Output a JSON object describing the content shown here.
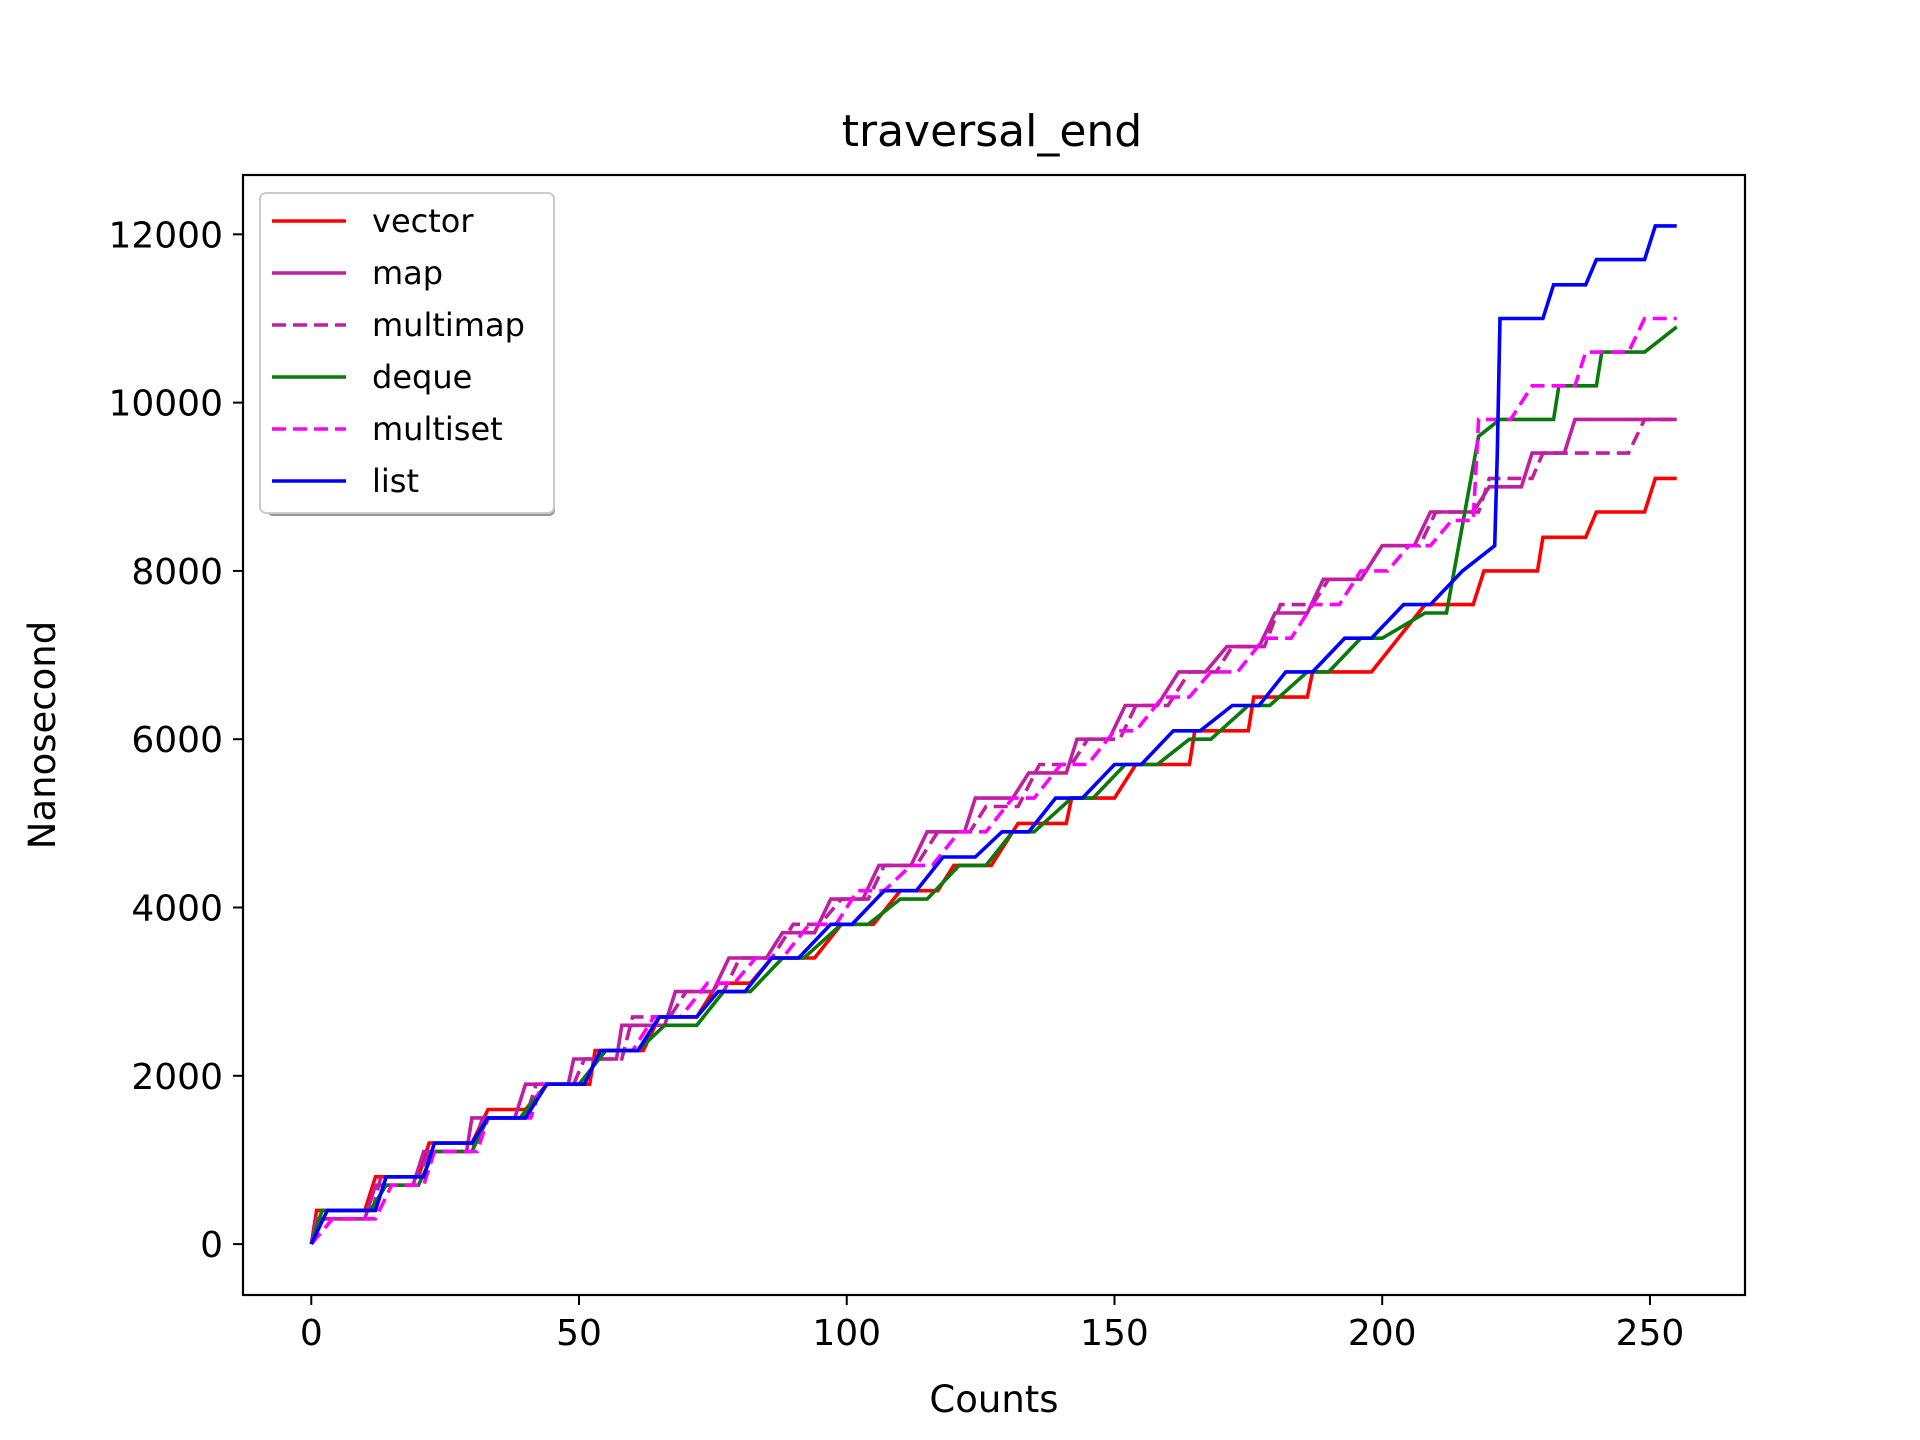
{
  "chart_data": {
    "type": "line",
    "title": "traversal_end",
    "xlabel": "Counts",
    "ylabel": "Nanosecond",
    "xlim": [
      -12.75,
      267.75
    ],
    "ylim": [
      -605,
      12705
    ],
    "xticks": [
      0,
      50,
      100,
      150,
      200,
      250
    ],
    "yticks": [
      0,
      2000,
      4000,
      6000,
      8000,
      10000,
      12000
    ],
    "grid": false,
    "legend_position": "upper-left",
    "series": [
      {
        "name": "vector",
        "color": "#ff0000",
        "dash": "solid",
        "x": [
          0,
          1,
          10,
          12,
          20,
          22,
          30,
          33,
          40,
          44,
          52,
          53,
          62,
          65,
          72,
          76,
          82,
          86,
          94,
          99,
          105,
          110,
          117,
          120,
          127,
          132,
          141,
          142,
          150,
          154,
          164,
          165,
          175,
          176,
          186,
          187,
          198,
          208,
          217,
          219,
          229,
          230,
          238,
          240,
          249,
          251,
          255
        ],
        "y": [
          0,
          400,
          400,
          800,
          800,
          1200,
          1200,
          1600,
          1600,
          1900,
          1900,
          2300,
          2300,
          2700,
          2700,
          3100,
          3100,
          3400,
          3400,
          3800,
          3800,
          4200,
          4200,
          4500,
          4500,
          5000,
          5000,
          5300,
          5300,
          5700,
          5700,
          6100,
          6100,
          6500,
          6500,
          6800,
          6800,
          7600,
          7600,
          8000,
          8000,
          8400,
          8400,
          8700,
          8700,
          9100,
          9100
        ]
      },
      {
        "name": "map",
        "color": "#bf1fa0",
        "dash": "solid",
        "x": [
          0,
          1,
          10,
          12,
          19,
          21,
          29,
          30,
          38,
          40,
          48,
          49,
          57,
          58,
          66,
          68,
          75,
          78,
          85,
          88,
          94,
          97,
          103,
          106,
          112,
          115,
          122,
          124,
          131,
          134,
          141,
          143,
          149,
          152,
          158,
          162,
          167,
          171,
          177,
          180,
          186,
          189,
          196,
          200,
          206,
          209,
          217,
          220,
          226,
          228,
          234,
          236,
          245,
          247,
          255
        ],
        "y": [
          0,
          300,
          300,
          700,
          700,
          1100,
          1100,
          1500,
          1500,
          1900,
          1900,
          2200,
          2200,
          2600,
          2600,
          3000,
          3000,
          3400,
          3400,
          3700,
          3700,
          4100,
          4100,
          4500,
          4500,
          4900,
          4900,
          5300,
          5300,
          5600,
          5600,
          6000,
          6000,
          6400,
          6400,
          6800,
          6800,
          7100,
          7100,
          7500,
          7500,
          7900,
          7900,
          8300,
          8300,
          8700,
          8700,
          9000,
          9000,
          9400,
          9400,
          9800,
          9800,
          9800,
          9800
        ]
      },
      {
        "name": "multimap",
        "color": "#bf1fa0",
        "dash": "dashed",
        "x": [
          0,
          2,
          11,
          13,
          20,
          22,
          30,
          32,
          40,
          42,
          49,
          51,
          58,
          60,
          67,
          70,
          77,
          80,
          86,
          90,
          95,
          99,
          104,
          107,
          113,
          117,
          123,
          126,
          132,
          136,
          142,
          145,
          151,
          154,
          160,
          164,
          169,
          172,
          178,
          181,
          187,
          190,
          196,
          200,
          207,
          210,
          218,
          220,
          228,
          230,
          236,
          238,
          246,
          249,
          255
        ],
        "y": [
          0,
          300,
          300,
          800,
          800,
          1100,
          1100,
          1500,
          1500,
          1900,
          1900,
          2200,
          2200,
          2700,
          2700,
          3000,
          3000,
          3400,
          3400,
          3800,
          3800,
          4100,
          4100,
          4500,
          4500,
          4900,
          4900,
          5200,
          5200,
          5700,
          5700,
          6000,
          6000,
          6400,
          6400,
          6800,
          6800,
          7100,
          7100,
          7600,
          7600,
          7900,
          7900,
          8300,
          8300,
          8700,
          8700,
          9100,
          9100,
          9400,
          9400,
          9400,
          9400,
          9800,
          9800
        ]
      },
      {
        "name": "deque",
        "color": "#0a7a0a",
        "dash": "solid",
        "x": [
          0,
          2,
          11,
          14,
          20,
          23,
          30,
          33,
          39,
          44,
          50,
          55,
          61,
          66,
          72,
          77,
          82,
          88,
          92,
          99,
          104,
          110,
          115,
          121,
          126,
          131,
          135,
          142,
          146,
          152,
          158,
          164,
          168,
          175,
          179,
          186,
          190,
          196,
          200,
          208,
          212,
          218,
          222,
          224,
          232,
          233,
          240,
          241,
          249,
          255
        ],
        "y": [
          0,
          400,
          400,
          700,
          700,
          1100,
          1100,
          1500,
          1500,
          1900,
          1900,
          2300,
          2300,
          2600,
          2600,
          3000,
          3000,
          3400,
          3400,
          3800,
          3800,
          4100,
          4100,
          4500,
          4500,
          4900,
          4900,
          5300,
          5300,
          5700,
          5700,
          6000,
          6000,
          6400,
          6400,
          6800,
          6800,
          7200,
          7200,
          7500,
          7500,
          9600,
          9800,
          9800,
          9800,
          10200,
          10200,
          10600,
          10600,
          10900
        ]
      },
      {
        "name": "multiset",
        "color": "#ff00ff",
        "dash": "dashed",
        "x": [
          0,
          4,
          12,
          15,
          21,
          23,
          31,
          33,
          41,
          43,
          51,
          54,
          60,
          64,
          69,
          74,
          79,
          83,
          88,
          93,
          98,
          102,
          107,
          112,
          116,
          121,
          126,
          131,
          135,
          140,
          145,
          150,
          154,
          159,
          164,
          168,
          173,
          178,
          183,
          187,
          192,
          196,
          201,
          205,
          209,
          213,
          217,
          218,
          220,
          224,
          228,
          231,
          236,
          238,
          246,
          249,
          255
        ],
        "y": [
          0,
          300,
          300,
          700,
          700,
          1100,
          1100,
          1500,
          1500,
          1900,
          1900,
          2300,
          2300,
          2700,
          2700,
          3100,
          3100,
          3400,
          3400,
          3800,
          3800,
          4200,
          4200,
          4500,
          4500,
          4900,
          4900,
          5300,
          5300,
          5700,
          5700,
          6100,
          6100,
          6500,
          6500,
          6800,
          6800,
          7200,
          7200,
          7600,
          7600,
          8000,
          8000,
          8300,
          8300,
          8600,
          8600,
          9800,
          9800,
          9800,
          10200,
          10200,
          10200,
          10600,
          10600,
          11000,
          11000
        ]
      },
      {
        "name": "list",
        "color": "#0000ff",
        "dash": "solid",
        "x": [
          0,
          3,
          12,
          14,
          21,
          23,
          30,
          33,
          40,
          44,
          51,
          54,
          61,
          65,
          72,
          76,
          81,
          86,
          91,
          97,
          101,
          107,
          113,
          118,
          124,
          129,
          134,
          139,
          144,
          150,
          155,
          161,
          166,
          172,
          177,
          182,
          187,
          193,
          198,
          204,
          209,
          215,
          221,
          221.5,
          222,
          230,
          232,
          238,
          240,
          249,
          251,
          255
        ],
        "y": [
          0,
          400,
          400,
          800,
          800,
          1200,
          1200,
          1500,
          1500,
          1900,
          1900,
          2300,
          2300,
          2700,
          2700,
          3000,
          3000,
          3400,
          3400,
          3800,
          3800,
          4200,
          4200,
          4600,
          4600,
          4900,
          4900,
          5300,
          5300,
          5700,
          5700,
          6100,
          6100,
          6400,
          6400,
          6800,
          6800,
          7200,
          7200,
          7600,
          7600,
          8000,
          8300,
          9400,
          11000,
          11000,
          11400,
          11400,
          11700,
          11700,
          12100,
          12100
        ]
      }
    ]
  }
}
